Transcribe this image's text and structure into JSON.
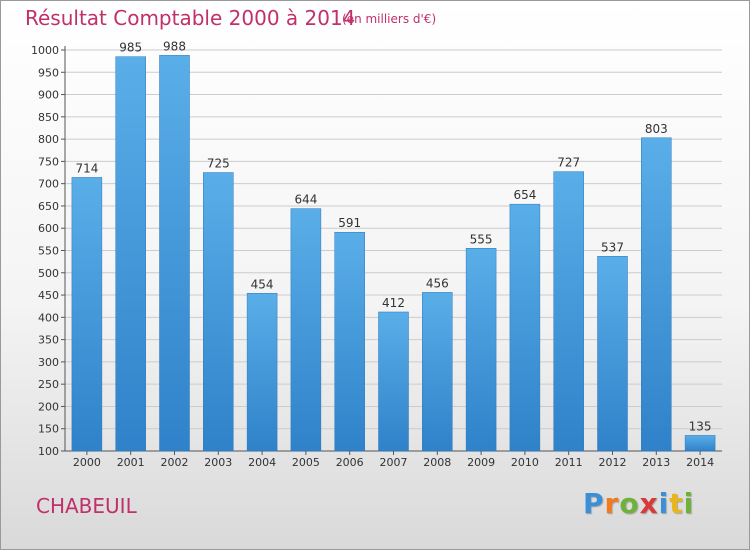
{
  "title": "Résultat Comptable 2000 à 2014",
  "subtitle": "(en milliers d'€)",
  "commune": "CHABEUIL",
  "brand": {
    "letters": [
      "P",
      "r",
      "o",
      "x",
      "i",
      "t",
      "i"
    ],
    "colors": [
      "#3a8fd8",
      "#f07a1c",
      "#6fb23a",
      "#d63a3a",
      "#3a8fd8",
      "#e9b51a",
      "#6fb23a"
    ]
  },
  "colors": {
    "bar": "#4a9fe0",
    "title": "#c0306a",
    "grid": "#cccccc"
  },
  "chart_data": {
    "type": "bar",
    "categories": [
      "2000",
      "2001",
      "2002",
      "2003",
      "2004",
      "2005",
      "2006",
      "2007",
      "2008",
      "2009",
      "2010",
      "2011",
      "2012",
      "2013",
      "2014"
    ],
    "values": [
      714,
      985,
      988,
      725,
      454,
      644,
      591,
      412,
      456,
      555,
      654,
      727,
      537,
      803,
      135
    ],
    "ylim": [
      100,
      1000
    ],
    "yticks": [
      100,
      150,
      200,
      250,
      300,
      350,
      400,
      450,
      500,
      550,
      600,
      650,
      700,
      750,
      800,
      850,
      900,
      950,
      1000
    ],
    "grid": true,
    "data_labels": true
  }
}
